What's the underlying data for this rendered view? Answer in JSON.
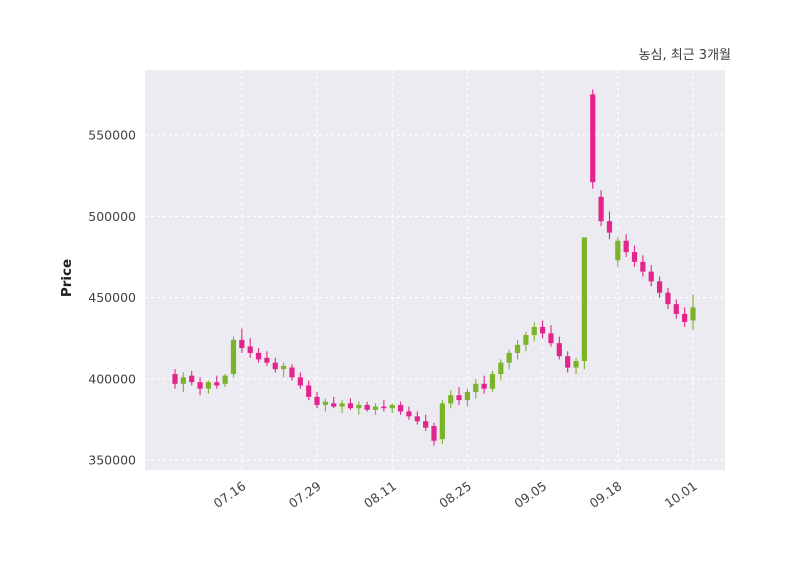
{
  "title": "농심, 최근 3개월",
  "y_axis_label": "Price",
  "colors": {
    "up": "#7cb32a",
    "down": "#e2258c",
    "plot_bg": "#ebebf1",
    "grid": "#ffffff",
    "tick_text": "#424242",
    "title_text": "#3d3d3d"
  },
  "chart_data": {
    "type": "candlestick",
    "title": "농심, 최근 3개월",
    "ylabel": "Price",
    "ylim": [
      344000,
      590000
    ],
    "y_ticks": [
      350000,
      400000,
      450000,
      500000,
      550000
    ],
    "x_tick_labels": [
      "07.16",
      "07.29",
      "08.11",
      "08.25",
      "09.05",
      "09.18",
      "10.01"
    ],
    "x_ticks": [
      {
        "label": "07.16",
        "index": 8
      },
      {
        "label": "07.29",
        "index": 17
      },
      {
        "label": "08.11",
        "index": 26
      },
      {
        "label": "08.25",
        "index": 35
      },
      {
        "label": "09.05",
        "index": 44
      },
      {
        "label": "09.18",
        "index": 53
      },
      {
        "label": "10.01",
        "index": 62
      }
    ],
    "grid": "dashed white gridlines on light gray plot background, no axis spines",
    "candle_format": [
      "date",
      "open",
      "high",
      "low",
      "close"
    ],
    "candles": [
      [
        "07.04",
        403000,
        406000,
        394000,
        397000
      ],
      [
        "07.05",
        397000,
        404000,
        392000,
        401000
      ],
      [
        "07.08",
        402000,
        405000,
        396000,
        398000
      ],
      [
        "07.09",
        398000,
        401000,
        390000,
        394000
      ],
      [
        "07.10",
        394000,
        399000,
        391000,
        398000
      ],
      [
        "07.11",
        398000,
        402000,
        394000,
        396000
      ],
      [
        "07.12",
        397000,
        403000,
        395000,
        402000
      ],
      [
        "07.15",
        403000,
        426000,
        401000,
        424000
      ],
      [
        "07.16",
        424000,
        431000,
        416000,
        419000
      ],
      [
        "07.17",
        420000,
        425000,
        413000,
        416000
      ],
      [
        "07.18",
        416000,
        419000,
        410000,
        412000
      ],
      [
        "07.19",
        413000,
        417000,
        408000,
        410000
      ],
      [
        "07.22",
        410000,
        413000,
        404000,
        406000
      ],
      [
        "07.23",
        406000,
        410000,
        401000,
        408000
      ],
      [
        "07.24",
        407000,
        409000,
        399000,
        401000
      ],
      [
        "07.25",
        401000,
        404000,
        394000,
        396000
      ],
      [
        "07.26",
        396000,
        399000,
        387000,
        389000
      ],
      [
        "07.29",
        389000,
        392000,
        382000,
        384000
      ],
      [
        "07.30",
        384000,
        388000,
        380000,
        386000
      ],
      [
        "07.31",
        385000,
        389000,
        382000,
        383000
      ],
      [
        "08.01",
        383000,
        387000,
        379000,
        385000
      ],
      [
        "08.02",
        385000,
        388000,
        381000,
        382000
      ],
      [
        "08.05",
        382000,
        386000,
        378000,
        384000
      ],
      [
        "08.06",
        384000,
        386000,
        380000,
        381000
      ],
      [
        "08.07",
        381000,
        385000,
        378000,
        383000
      ],
      [
        "08.08",
        383000,
        387000,
        380000,
        382000
      ],
      [
        "08.11",
        382000,
        385000,
        379000,
        384000
      ],
      [
        "08.12",
        384000,
        386000,
        378000,
        380000
      ],
      [
        "08.13",
        380000,
        383000,
        375000,
        377000
      ],
      [
        "08.14",
        377000,
        380000,
        372000,
        374000
      ],
      [
        "08.16",
        374000,
        378000,
        368000,
        370000
      ],
      [
        "08.19",
        371000,
        373000,
        359000,
        362000
      ],
      [
        "08.20",
        363000,
        387000,
        360000,
        385000
      ],
      [
        "08.21",
        385000,
        393000,
        382000,
        390000
      ],
      [
        "08.22",
        390000,
        395000,
        384000,
        387000
      ],
      [
        "08.25",
        387000,
        394000,
        383000,
        392000
      ],
      [
        "08.26",
        392000,
        400000,
        388000,
        397000
      ],
      [
        "08.27",
        397000,
        402000,
        391000,
        394000
      ],
      [
        "08.28",
        394000,
        405000,
        392000,
        403000
      ],
      [
        "08.29",
        403000,
        412000,
        399000,
        410000
      ],
      [
        "08.30",
        410000,
        418000,
        406000,
        416000
      ],
      [
        "09.02",
        416000,
        424000,
        412000,
        421000
      ],
      [
        "09.03",
        421000,
        429000,
        417000,
        427000
      ],
      [
        "09.04",
        427000,
        435000,
        423000,
        432000
      ],
      [
        "09.05",
        432000,
        436000,
        425000,
        428000
      ],
      [
        "09.06",
        428000,
        433000,
        420000,
        422000
      ],
      [
        "09.09",
        422000,
        426000,
        412000,
        414000
      ],
      [
        "09.10",
        414000,
        417000,
        404000,
        407000
      ],
      [
        "09.11",
        407000,
        413000,
        403000,
        411000
      ],
      [
        "09.12",
        411000,
        487000,
        406000,
        487000
      ],
      [
        "09.13",
        575000,
        578000,
        517000,
        521000
      ],
      [
        "09.16",
        512000,
        516000,
        494000,
        497000
      ],
      [
        "09.17",
        497000,
        503000,
        486000,
        490000
      ],
      [
        "09.18",
        473000,
        487000,
        469000,
        485000
      ],
      [
        "09.19",
        485000,
        489000,
        475000,
        478000
      ],
      [
        "09.20",
        478000,
        482000,
        469000,
        472000
      ],
      [
        "09.23",
        472000,
        476000,
        463000,
        466000
      ],
      [
        "09.24",
        466000,
        470000,
        457000,
        460000
      ],
      [
        "09.25",
        460000,
        463000,
        450000,
        453000
      ],
      [
        "09.26",
        453000,
        456000,
        443000,
        446000
      ],
      [
        "09.27",
        446000,
        449000,
        437000,
        440000
      ],
      [
        "09.30",
        440000,
        444000,
        432000,
        435000
      ],
      [
        "10.01",
        436000,
        452000,
        430000,
        444000
      ]
    ]
  }
}
